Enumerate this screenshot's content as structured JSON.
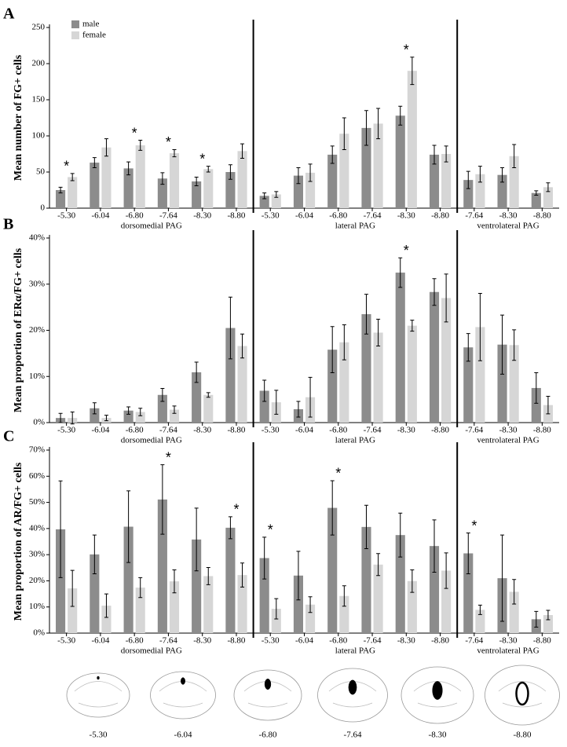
{
  "chart_data": [
    {
      "type": "bar",
      "panel": "A",
      "ylabel": "Mean number of FG+ cells",
      "legend": "upper left",
      "groups": [
        {
          "label": "dorsomedial PAG",
          "categories": [
            "-5.30",
            "-6.04",
            "-6.80",
            "-7.64",
            "-8.30",
            "-8.80"
          ]
        },
        {
          "label": "lateral PAG",
          "categories": [
            "-5.30",
            "-6.04",
            "-6.80",
            "-7.64",
            "-8.30",
            "-8.80"
          ]
        },
        {
          "label": "ventrolateral PAG",
          "categories": [
            "-7.64",
            "-8.30",
            "-8.80"
          ]
        }
      ],
      "series": [
        {
          "name": "male",
          "color": "#8c8c8c",
          "values": [
            25,
            63,
            55,
            41,
            37,
            50,
            17,
            45,
            74,
            111,
            128,
            74,
            39,
            46,
            21
          ],
          "errors": [
            4,
            7,
            9,
            8,
            6,
            10,
            4,
            11,
            12,
            24,
            13,
            13,
            12,
            10,
            3
          ]
        },
        {
          "name": "female",
          "color": "#d6d6d6",
          "values": [
            43,
            84,
            87,
            76,
            54,
            79,
            19,
            49,
            103,
            117,
            190,
            75,
            47,
            72,
            29
          ],
          "errors": [
            5,
            12,
            7,
            5,
            4,
            10,
            4,
            12,
            22,
            21,
            19,
            11,
            11,
            16,
            6
          ]
        }
      ],
      "significance": [
        "*",
        null,
        "*",
        "*",
        "*",
        null,
        null,
        null,
        null,
        null,
        "*",
        null,
        null,
        null,
        null
      ],
      "ylim": [
        0,
        250
      ],
      "yticks": [
        0,
        50,
        100,
        150,
        200,
        250
      ],
      "grid": false
    },
    {
      "type": "bar",
      "panel": "B",
      "ylabel": "Mean proportion of ERα/FG+ cells",
      "groups": [
        {
          "label": "dorsomedial PAG",
          "categories": [
            "-5.30",
            "-6.04",
            "-6.80",
            "-7.64",
            "-8.30",
            "-8.80"
          ]
        },
        {
          "label": "lateral PAG",
          "categories": [
            "-5.30",
            "-6.04",
            "-6.80",
            "-7.64",
            "-8.30",
            "-8.80"
          ]
        },
        {
          "label": "ventrolateral PAG",
          "categories": [
            "-7.64",
            "-8.30",
            "-8.80"
          ]
        }
      ],
      "series": [
        {
          "color": "#8c8c8c",
          "values": [
            1,
            3.1,
            2.6,
            6,
            10.9,
            20.5,
            6.9,
            2.9,
            15.8,
            23.5,
            32.5,
            28.3,
            16.3,
            16.9,
            7.5
          ],
          "errors": [
            1,
            1.2,
            0.8,
            1.4,
            2.2,
            6.7,
            2.3,
            1.7,
            5,
            4.3,
            3.2,
            2.9,
            3,
            6.4,
            3.3
          ]
        },
        {
          "color": "#d6d6d6",
          "values": [
            1,
            1,
            2.3,
            2.8,
            6,
            16.6,
            4.4,
            5.5,
            17.4,
            19.5,
            21,
            27,
            20.7,
            16.8,
            3.8
          ],
          "errors": [
            1.3,
            0.6,
            0.8,
            0.8,
            0.5,
            2.6,
            2.6,
            4.3,
            3.8,
            2.9,
            1.2,
            5.2,
            7.3,
            3.3,
            1.9
          ]
        }
      ],
      "significance": [
        null,
        null,
        null,
        null,
        null,
        null,
        null,
        null,
        null,
        null,
        "*",
        null,
        null,
        null,
        null
      ],
      "ylim": [
        0,
        40
      ],
      "yticks": [
        {
          "value": 0,
          "label": "0%"
        },
        {
          "value": 10,
          "label": "10%"
        },
        {
          "value": 20,
          "label": "20%"
        },
        {
          "value": 30,
          "label": "30%"
        },
        {
          "value": 40,
          "label": "40%"
        }
      ],
      "grid": false
    },
    {
      "type": "bar",
      "panel": "C",
      "ylabel": "Mean proportion of AR/FG+ cells",
      "groups": [
        {
          "label": "dorsomedial PAG",
          "categories": [
            "-5.30",
            "-6.04",
            "-6.80",
            "-7.64",
            "-8.30",
            "-8.80"
          ]
        },
        {
          "label": "lateral PAG",
          "categories": [
            "-5.30",
            "-6.04",
            "-6.80",
            "-7.64",
            "-8.30",
            "-8.80"
          ]
        },
        {
          "label": "ventrolateral PAG",
          "categories": [
            "-7.64",
            "-8.30",
            "-8.80"
          ]
        }
      ],
      "series": [
        {
          "color": "#8c8c8c",
          "values": [
            39.7,
            30.1,
            40.7,
            51.1,
            35.8,
            40.3,
            28.7,
            22,
            47.9,
            40.6,
            37.5,
            33.3,
            30.5,
            21,
            5.3
          ],
          "errors": [
            18.5,
            7.4,
            13.7,
            13.3,
            12,
            4.2,
            8,
            9.3,
            10.4,
            8.3,
            8.4,
            10,
            7.8,
            16.5,
            3
          ]
        },
        {
          "color": "#d6d6d6",
          "values": [
            17.1,
            10.5,
            17.4,
            19.8,
            21.8,
            22.2,
            9.3,
            10.9,
            14.2,
            26.2,
            19.9,
            23.9,
            8.9,
            15.8,
            6.9
          ],
          "errors": [
            6.9,
            4.5,
            3.8,
            4.4,
            3.3,
            4.6,
            3.9,
            3,
            3.9,
            4.2,
            4.3,
            6.8,
            1.8,
            4.7,
            1.8
          ]
        }
      ],
      "significance": [
        null,
        null,
        null,
        "*",
        null,
        "*",
        "*",
        null,
        "*",
        null,
        null,
        null,
        "*",
        null,
        null
      ],
      "ylim": [
        0,
        70
      ],
      "yticks": [
        {
          "value": 0,
          "label": "0%"
        },
        {
          "value": 10,
          "label": "10%"
        },
        {
          "value": 20,
          "label": "20%"
        },
        {
          "value": 30,
          "label": "30%"
        },
        {
          "value": 40,
          "label": "40%"
        },
        {
          "value": 50,
          "label": "50%"
        },
        {
          "value": 60,
          "label": "60%"
        },
        {
          "value": 70,
          "label": "70%"
        }
      ],
      "grid": false
    }
  ],
  "sections": {
    "labels": [
      "-5.30",
      "-6.04",
      "-6.80",
      "-7.64",
      "-8.30",
      "-8.80"
    ]
  }
}
